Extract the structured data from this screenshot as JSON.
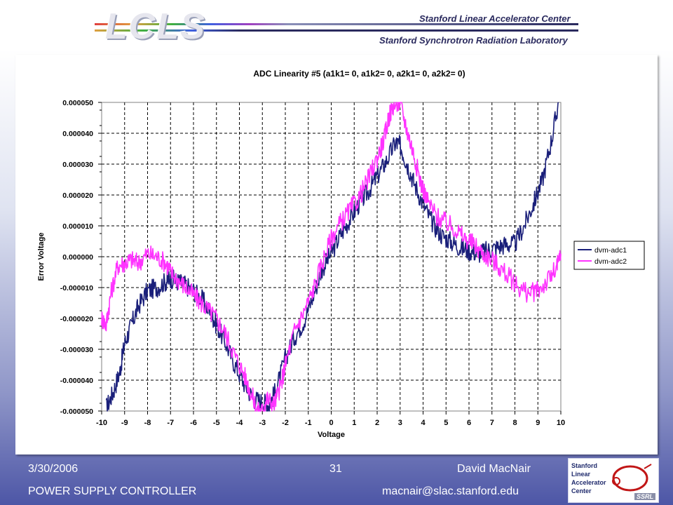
{
  "header": {
    "logo": "LCLS",
    "lab1": "Stanford Linear Accelerator Center",
    "lab2": "Stanford Synchrotron Radiation Laboratory"
  },
  "footer": {
    "date": "3/30/2006",
    "slide_number": "31",
    "author": "David MacNair",
    "title": "POWER SUPPLY CONTROLLER",
    "email": "macnair@slac.stanford.edu"
  },
  "ssrl_logo": {
    "lines": [
      "Stanford",
      "Linear",
      "Accelerator",
      "Center"
    ],
    "badge": "SSRL"
  },
  "colors": {
    "series1": "#1a1f7a",
    "series2": "#ff33ff"
  },
  "chart_data": {
    "type": "line",
    "title": "ADC Linearity #5 (a1k1= 0, a1k2= 0, a2k1= 0, a2k2= 0)",
    "xlabel": "Voltage",
    "ylabel": "Error Voltage",
    "xlim": [
      -10,
      10
    ],
    "ylim": [
      -5e-05,
      5e-05
    ],
    "x_ticks": [
      "-10",
      "-9",
      "-8",
      "-7",
      "-6",
      "-5",
      "-4",
      "-3",
      "-2",
      "-1",
      "0",
      "1",
      "2",
      "3",
      "4",
      "5",
      "6",
      "7",
      "8",
      "9",
      "10"
    ],
    "y_ticks": [
      "0.000050",
      "0.000040",
      "0.000030",
      "0.000020",
      "0.000010",
      "0.000000",
      "-0.000010",
      "-0.000020",
      "-0.000030",
      "-0.000040",
      "-0.000050"
    ],
    "grid": true,
    "legend": "right",
    "series": [
      {
        "name": "dvm-adc1",
        "x": [
          -9.8,
          -9.5,
          -9.2,
          -9,
          -8.7,
          -8.4,
          -8,
          -7.6,
          -7.2,
          -7,
          -6.7,
          -6.4,
          -6,
          -5.6,
          -5.2,
          -5,
          -4.6,
          -4.2,
          -3.8,
          -3.4,
          -3,
          -2.7,
          -2.4,
          -2,
          -1.6,
          -1.2,
          -0.8,
          -0.4,
          0,
          0.4,
          0.8,
          1.2,
          1.6,
          2,
          2.4,
          2.8,
          3,
          3.3,
          3.6,
          4,
          4.4,
          4.8,
          5.2,
          5.6,
          6,
          6.4,
          6.8,
          7.2,
          7.6,
          8,
          8.4,
          8.8,
          9.2,
          9.6,
          9.9
        ],
        "values": [
          -4.9e-05,
          -4.4e-05,
          -3.7e-05,
          -2.8e-05,
          -2.2e-05,
          -1.6e-05,
          -1.1e-05,
          -1e-05,
          -8e-06,
          -7e-06,
          -8e-06,
          -9e-06,
          -1.1e-05,
          -1.4e-05,
          -1.9e-05,
          -2.2e-05,
          -2.8e-05,
          -3.5e-05,
          -4.1e-05,
          -4.6e-05,
          -4.7e-05,
          -4.8e-05,
          -4.3e-05,
          -3.3e-05,
          -2.6e-05,
          -2.1e-05,
          -1.3e-05,
          -4e-06,
          1e-06,
          7e-06,
          1.2e-05,
          1.7e-05,
          2.1e-05,
          2.6e-05,
          3.1e-05,
          3.7e-05,
          3.6e-05,
          3e-05,
          2.4e-05,
          1.7e-05,
          1.1e-05,
          7e-06,
          5e-06,
          3e-06,
          2e-06,
          1e-06,
          2e-06,
          3e-06,
          4e-06,
          4e-06,
          1e-05,
          1.7e-05,
          2.5e-05,
          3.8e-05,
          5e-05
        ]
      },
      {
        "name": "dvm-adc2",
        "x": [
          -10,
          -9.8,
          -9.6,
          -9.3,
          -9,
          -8.7,
          -8.4,
          -8,
          -7.6,
          -7.2,
          -7,
          -6.6,
          -6.2,
          -5.8,
          -5.4,
          -5,
          -4.6,
          -4.2,
          -3.8,
          -3.5,
          -3.2,
          -3,
          -2.8,
          -2.5,
          -2.2,
          -2,
          -1.6,
          -1.2,
          -0.8,
          -0.4,
          0,
          0.4,
          0.8,
          1.2,
          1.6,
          2,
          2.3,
          2.5,
          2.7,
          3,
          3.3,
          3.6,
          3.9,
          4.2,
          4.6,
          5,
          5.4,
          5.8,
          6.2,
          6.6,
          7,
          7.4,
          7.8,
          8.2,
          8.6,
          9,
          9.4,
          9.8,
          10
        ],
        "values": [
          -2e-05,
          -2.2e-05,
          -1.2e-05,
          -3e-06,
          -2e-06,
          -1e-06,
          -2e-06,
          1e-06,
          0.0,
          -2e-06,
          -5e-06,
          -8e-06,
          -1.1e-05,
          -1.4e-05,
          -1.7e-05,
          -2e-05,
          -2.5e-05,
          -3.2e-05,
          -3.8e-05,
          -4.4e-05,
          -5e-05,
          -5e-05,
          -4.6e-05,
          -4.8e-05,
          -4.2e-05,
          -3.5e-05,
          -2.4e-05,
          -1.8e-05,
          -1.1e-05,
          -2e-06,
          6e-06,
          1.1e-05,
          1.5e-05,
          1.9e-05,
          2.5e-05,
          3.2e-05,
          3.8e-05,
          4.5e-05,
          4.9e-05,
          5e-05,
          4.1e-05,
          3.3e-05,
          2.4e-05,
          1.8e-05,
          1.3e-05,
          1.1e-05,
          9e-06,
          6e-06,
          4e-06,
          1e-06,
          -1e-06,
          -4e-06,
          -7e-06,
          -1e-05,
          -1.2e-05,
          -1.1e-05,
          -8e-06,
          -4e-06,
          1e-06
        ]
      }
    ]
  }
}
